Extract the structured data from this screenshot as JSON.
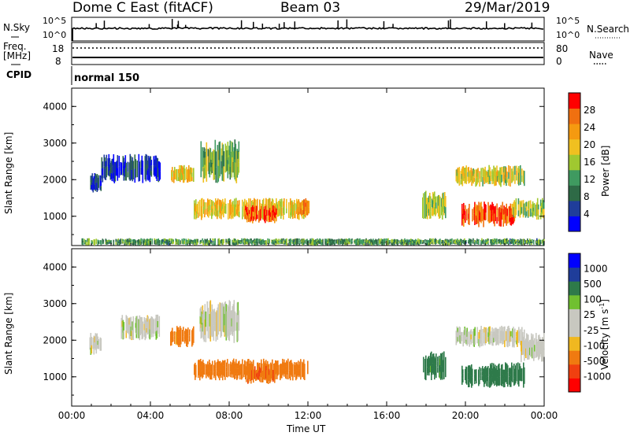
{
  "header": {
    "station": "Dome C East (fitACF)",
    "beam": "Beam 03",
    "date": "29/Mar/2019"
  },
  "top_panel": {
    "nsky_label": "N.Sky",
    "nsearch_label": "N.Search",
    "nsky_ticks": [
      "10^5",
      "10^0"
    ],
    "nsearch_ticks": [
      "10^5",
      "10^0"
    ],
    "freq_label": "Freq.",
    "freq_unit": "[MHz]",
    "freq_ticks": [
      "18",
      "8"
    ],
    "nave_label": "Nave",
    "nave_ticks": [
      "80",
      "0"
    ],
    "cpid_label": "CPID",
    "cpid_value": "normal 150"
  },
  "colors": {
    "power_scale": [
      "#0000ff",
      "#1f3d9a",
      "#2e6a46",
      "#3f9a60",
      "#a0c830",
      "#f0c020",
      "#f59a10",
      "#f07010",
      "#ff0000"
    ],
    "velocity_scale": [
      "#ff0000",
      "#f04010",
      "#f07a10",
      "#f0b820",
      "#c8c8c0",
      "#c8c8c0",
      "#70c030",
      "#2e7a4a",
      "#1f3d9a",
      "#0000ff"
    ]
  },
  "chart_data": [
    {
      "type": "heatmap",
      "panel": "power",
      "ylabel": "Slant Range [km]",
      "xlabel": "Time UT",
      "x_ticks": [
        "00:00",
        "04:00",
        "08:00",
        "12:00",
        "16:00",
        "20:00",
        "00:00"
      ],
      "y_ticks": [
        "1000",
        "2000",
        "3000",
        "4000"
      ],
      "ylim": [
        200,
        4500
      ],
      "xlim": [
        0,
        24
      ],
      "colorbar_label": "Power [dB]",
      "colorbar_ticks": [
        "4",
        "8",
        "12",
        "16",
        "20",
        "24",
        "28"
      ],
      "clim": [
        0,
        32
      ],
      "echo_regions": [
        {
          "t": [
            0.9,
            1.5
          ],
          "r": [
            1600,
            2200
          ],
          "v": 6
        },
        {
          "t": [
            1.5,
            4.5
          ],
          "r": [
            1900,
            2700
          ],
          "v": 5
        },
        {
          "t": [
            5.0,
            6.2
          ],
          "r": [
            1900,
            2400
          ],
          "v": 20
        },
        {
          "t": [
            6.5,
            8.5
          ],
          "r": [
            1900,
            3100
          ],
          "v": 14
        },
        {
          "t": [
            6.2,
            12.0
          ],
          "r": [
            900,
            1500
          ],
          "v": 20
        },
        {
          "t": [
            8.8,
            10.4
          ],
          "r": [
            800,
            1300
          ],
          "v": 28
        },
        {
          "t": [
            11.5,
            12.1
          ],
          "r": [
            1000,
            1500
          ],
          "v": 24
        },
        {
          "t": [
            17.8,
            19.0
          ],
          "r": [
            900,
            1700
          ],
          "v": 16
        },
        {
          "t": [
            19.5,
            23.0
          ],
          "r": [
            1800,
            2400
          ],
          "v": 18
        },
        {
          "t": [
            19.8,
            22.5
          ],
          "r": [
            700,
            1400
          ],
          "v": 28
        },
        {
          "t": [
            22.3,
            24.0
          ],
          "r": [
            900,
            1500
          ],
          "v": 16
        },
        {
          "t": [
            0.5,
            24.0
          ],
          "r": [
            200,
            400
          ],
          "v": 12
        }
      ]
    },
    {
      "type": "heatmap",
      "panel": "velocity",
      "ylabel": "Slant Range [km]",
      "xlabel": "Time UT",
      "x_ticks": [
        "00:00",
        "04:00",
        "08:00",
        "12:00",
        "16:00",
        "20:00",
        "00:00"
      ],
      "y_ticks": [
        "1000",
        "2000",
        "3000",
        "4000"
      ],
      "ylim": [
        200,
        4500
      ],
      "xlim": [
        0,
        24
      ],
      "colorbar_label": "Velocity [m s^-1]",
      "colorbar_ticks": [
        "-1000",
        "-500",
        "-100",
        "-25",
        "25",
        "100",
        "500",
        "1000"
      ],
      "clim": [
        -1200,
        1200
      ],
      "echo_regions": [
        {
          "t": [
            0.9,
            1.5
          ],
          "r": [
            1600,
            2200
          ],
          "v": 0
        },
        {
          "t": [
            2.5,
            4.5
          ],
          "r": [
            2000,
            2700
          ],
          "v": 0
        },
        {
          "t": [
            5.0,
            6.2
          ],
          "r": [
            1800,
            2400
          ],
          "v": -150
        },
        {
          "t": [
            6.5,
            8.5
          ],
          "r": [
            1900,
            3100
          ],
          "v": 0
        },
        {
          "t": [
            6.2,
            12.0
          ],
          "r": [
            900,
            1500
          ],
          "v": -300
        },
        {
          "t": [
            8.8,
            10.4
          ],
          "r": [
            800,
            1300
          ],
          "v": -400
        },
        {
          "t": [
            17.8,
            19.0
          ],
          "r": [
            900,
            1700
          ],
          "v": 150
        },
        {
          "t": [
            19.5,
            23.0
          ],
          "r": [
            1800,
            2400
          ],
          "v": 0
        },
        {
          "t": [
            19.8,
            23.0
          ],
          "r": [
            700,
            1400
          ],
          "v": 200
        },
        {
          "t": [
            22.8,
            24.0
          ],
          "r": [
            1400,
            2200
          ],
          "v": 0
        }
      ]
    }
  ]
}
